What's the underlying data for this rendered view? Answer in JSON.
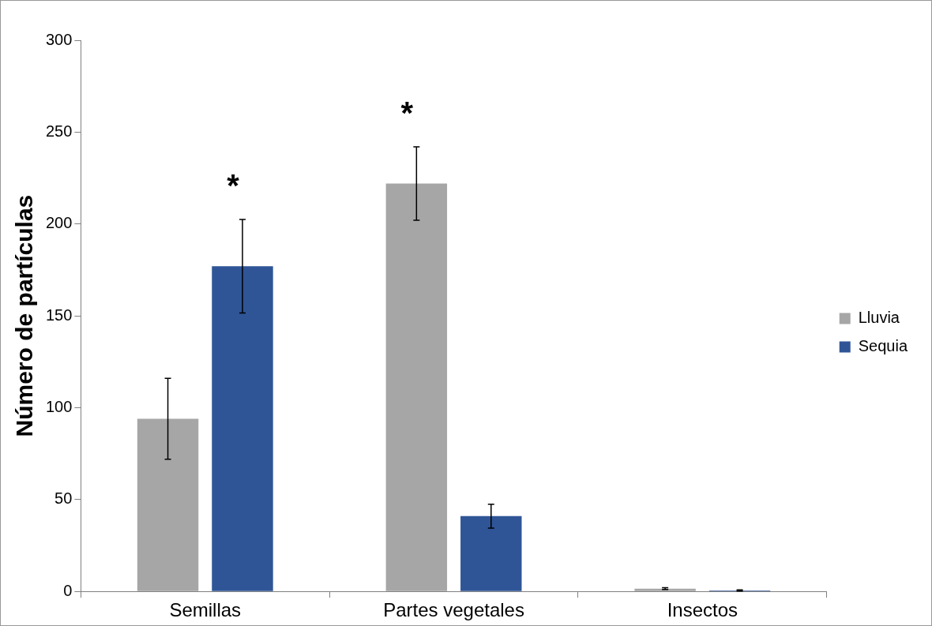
{
  "chart_data": {
    "type": "bar",
    "ylabel": "Número de partículas",
    "categories": [
      "Semillas",
      "Partes vegetales",
      "Insectos"
    ],
    "series": [
      {
        "name": "Lluvia",
        "color": "#a6a6a6",
        "values": [
          94,
          222,
          1.5
        ],
        "errors": [
          22,
          20,
          0.5
        ]
      },
      {
        "name": "Sequia",
        "color": "#2f5597",
        "values": [
          177,
          41,
          0.5
        ],
        "errors": [
          25.5,
          6.5,
          0.3
        ]
      }
    ],
    "ylim": [
      0,
      300
    ],
    "yticks": [
      0,
      50,
      100,
      150,
      200,
      250,
      300
    ],
    "grid": false,
    "legend": "right",
    "annotations": [
      "*",
      "*"
    ]
  }
}
